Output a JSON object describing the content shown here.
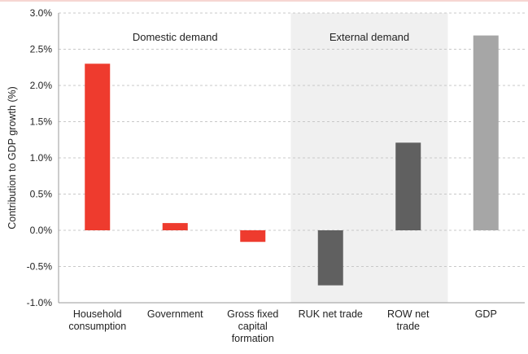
{
  "chart_data": {
    "type": "bar",
    "title": "",
    "xlabel": "",
    "ylabel": "Contribution to GDP growth (%)",
    "ylim": [
      -1.0,
      3.0
    ],
    "yticks": [
      "-1.0%",
      "-0.5%",
      "0.0%",
      "0.5%",
      "1.0%",
      "1.5%",
      "2.0%",
      "2.5%",
      "3.0%"
    ],
    "grid": true,
    "categories": [
      [
        "Household",
        "consumption"
      ],
      [
        "Government"
      ],
      [
        "Gross fixed",
        "capital",
        "formation"
      ],
      [
        "RUK net trade"
      ],
      [
        "ROW net",
        "trade"
      ],
      [
        "GDP"
      ]
    ],
    "values": [
      2.3,
      0.1,
      -0.16,
      -0.76,
      1.21,
      2.69
    ],
    "bar_colors": [
      "#ee3b2e",
      "#ee3b2e",
      "#ee3b2e",
      "#606060",
      "#606060",
      "#a6a6a6"
    ],
    "regions": [
      {
        "label": "Domestic demand",
        "shaded": false
      },
      {
        "label": "External demand",
        "shaded": true,
        "color": "#f0f0f0"
      }
    ]
  }
}
